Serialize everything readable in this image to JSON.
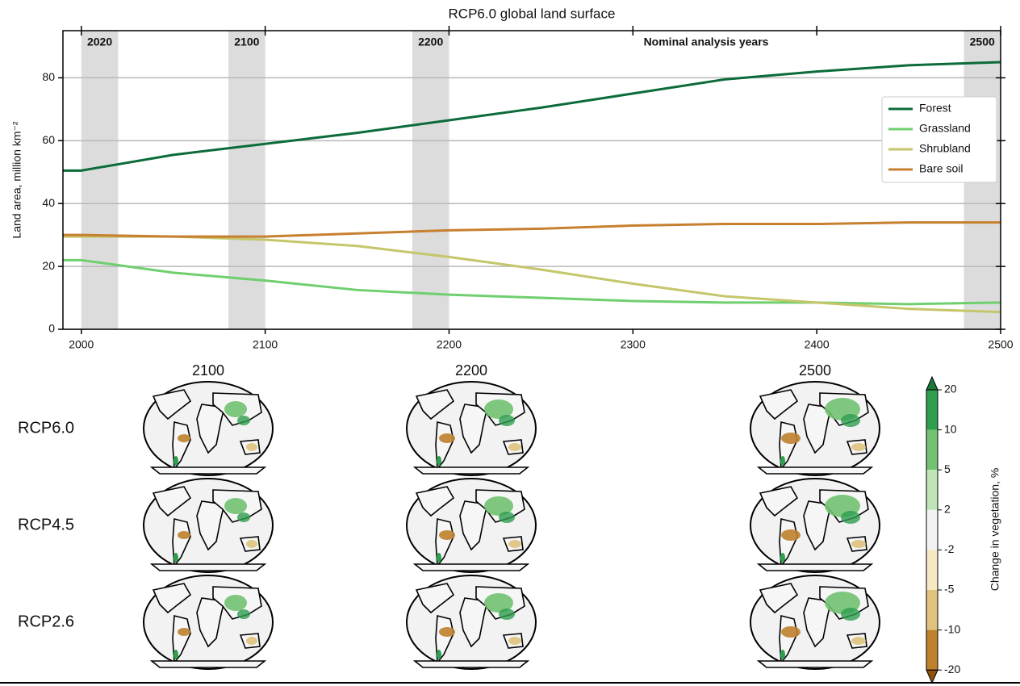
{
  "chart_data": {
    "type": "line",
    "title": "RCP6.0 global land surface",
    "y_label": "Land area, million km⁻²",
    "x": [
      1990,
      2000,
      2050,
      2100,
      2150,
      2200,
      2250,
      2300,
      2350,
      2400,
      2450,
      2500
    ],
    "series": [
      {
        "name": "Forest",
        "color": "#0b6b3a",
        "values": [
          50.5,
          50.5,
          55.5,
          59,
          62.5,
          66.5,
          70.5,
          75,
          79.5,
          82,
          84,
          85
        ]
      },
      {
        "name": "Grassland",
        "color": "#6fcf6f",
        "values": [
          22,
          22,
          18,
          15.5,
          12.5,
          11,
          10,
          9,
          8.5,
          8.5,
          8,
          8.5
        ]
      },
      {
        "name": "Shrubland",
        "color": "#c5c66a",
        "values": [
          29.5,
          29.5,
          29.5,
          28.5,
          26.5,
          23,
          19,
          14.5,
          10.5,
          8.5,
          6.5,
          5.5
        ]
      },
      {
        "name": "Bare soil",
        "color": "#c77f30",
        "values": [
          30,
          30,
          29.5,
          29.5,
          30.5,
          31.5,
          32,
          33,
          33.5,
          33.5,
          34,
          34
        ]
      }
    ],
    "xlim": [
      1990,
      2500
    ],
    "xticks": [
      2000,
      2100,
      2200,
      2300,
      2400,
      2500
    ],
    "ylim": [
      0,
      95
    ],
    "yticks": [
      0,
      20,
      40,
      60,
      80
    ],
    "grid": true,
    "legend": "upper right",
    "shaded_periods": [
      {
        "range": [
          2000,
          2020
        ],
        "label": "2020"
      },
      {
        "range": [
          2080,
          2100
        ],
        "label": "2100"
      },
      {
        "range": [
          2180,
          2200
        ],
        "label": "2200"
      },
      {
        "range": [
          2480,
          2500
        ],
        "label": "2500"
      }
    ],
    "annotation": "Nominal analysis years"
  },
  "map_panel": {
    "columns": [
      "2100",
      "2200",
      "2500"
    ],
    "rows": [
      "RCP6.0",
      "RCP4.5",
      "RCP2.6"
    ],
    "colorbar": {
      "label": "Change in vegetation, %",
      "ticks": [
        20,
        10,
        5,
        2,
        -2,
        -5,
        -10,
        -20
      ],
      "colors": [
        "#2e9e4f",
        "#72c272",
        "#bfe4b8",
        "#f2f2f2",
        "#f6e8c3",
        "#dfc27d",
        "#bf812d"
      ],
      "extend_colors": [
        "#1b7a3a",
        "#8c510a"
      ]
    }
  }
}
